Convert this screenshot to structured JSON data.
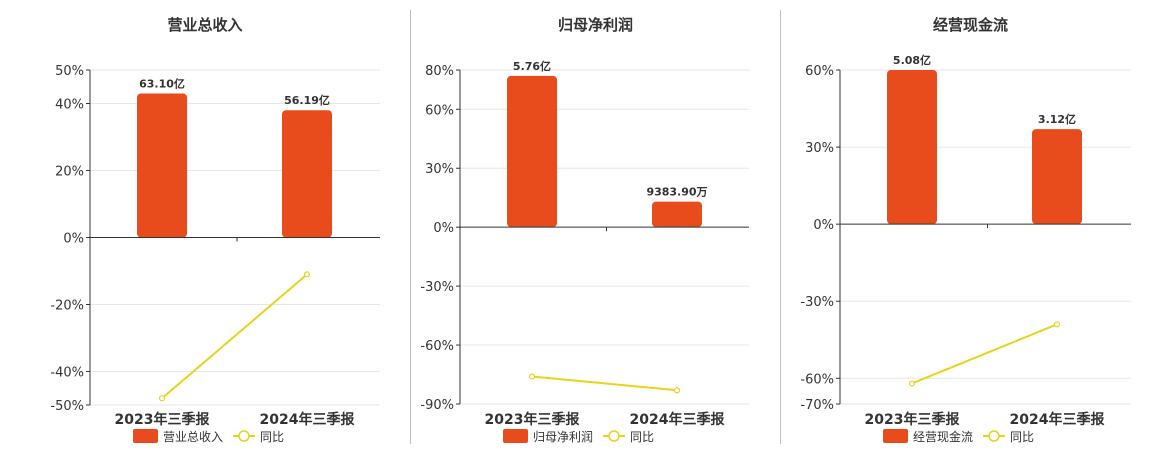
{
  "colors": {
    "bar": "#e84c1c",
    "line": "#e8d21a",
    "grid": "#e6e6e6",
    "axis": "#333333"
  },
  "chart_data": [
    {
      "type": "bar",
      "title": "营业总收入",
      "categories": [
        "2023年三季报",
        "2024年三季报"
      ],
      "ylim": [
        -50,
        50
      ],
      "yticks": [
        "50%",
        "40%",
        "20%",
        "0%",
        "-20%",
        "-40%",
        "-50%"
      ],
      "ytick_values": [
        50,
        40,
        20,
        0,
        -20,
        -40,
        -50
      ],
      "series": [
        {
          "name": "营业总收入",
          "kind": "bar",
          "values": [
            43,
            38
          ],
          "labels": [
            "63.10亿",
            "56.19亿"
          ]
        },
        {
          "name": "同比",
          "kind": "line",
          "values": [
            -48,
            -11
          ]
        }
      ],
      "grid": true,
      "legend": "bottom"
    },
    {
      "type": "bar",
      "title": "归母净利润",
      "categories": [
        "2023年三季报",
        "2024年三季报"
      ],
      "ylim": [
        -90,
        80
      ],
      "yticks": [
        "80%",
        "60%",
        "30%",
        "0%",
        "-30%",
        "-60%",
        "-90%"
      ],
      "ytick_values": [
        80,
        60,
        30,
        0,
        -30,
        -60,
        -90
      ],
      "series": [
        {
          "name": "归母净利润",
          "kind": "bar",
          "values": [
            77,
            13
          ],
          "labels": [
            "5.76亿",
            "9383.90万"
          ]
        },
        {
          "name": "同比",
          "kind": "line",
          "values": [
            -76,
            -83
          ]
        }
      ],
      "grid": true,
      "legend": "bottom"
    },
    {
      "type": "bar",
      "title": "经营现金流",
      "categories": [
        "2023年三季报",
        "2024年三季报"
      ],
      "ylim": [
        -70,
        60
      ],
      "yticks": [
        "60%",
        "30%",
        "0%",
        "-30%",
        "-60%",
        "-70%"
      ],
      "ytick_values": [
        60,
        30,
        0,
        -30,
        -60,
        -70
      ],
      "series": [
        {
          "name": "经营现金流",
          "kind": "bar",
          "values": [
            60,
            37
          ],
          "labels": [
            "5.08亿",
            "3.12亿"
          ]
        },
        {
          "name": "同比",
          "kind": "line",
          "values": [
            -62,
            -39
          ]
        }
      ],
      "grid": true,
      "legend": "bottom"
    }
  ]
}
